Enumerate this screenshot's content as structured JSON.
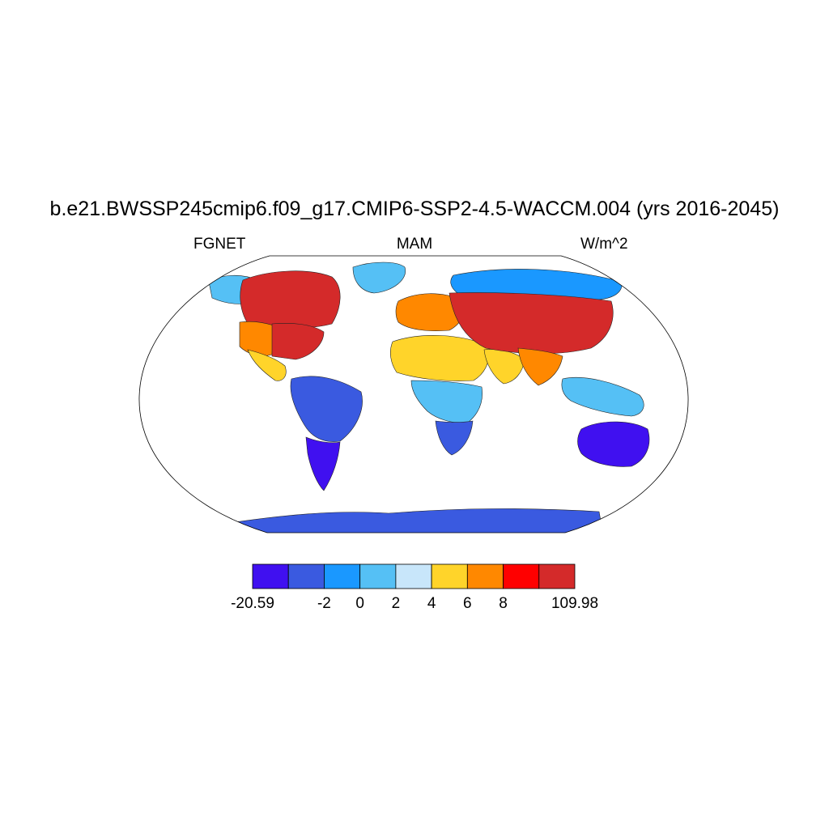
{
  "title": "b.e21.BWSSP245cmip6.f09_g17.CMIP6-SSP2-4.5-WACCM.004 (yrs 2016-2045)",
  "subtitle_left": "FGNET",
  "subtitle_center": "MAM",
  "subtitle_right": "W/m^2",
  "colorbar": {
    "colors": [
      "#4010f0",
      "#3a5ae0",
      "#1a98ff",
      "#55c0f5",
      "#c8e6fa",
      "#ffd42a",
      "#ff8800",
      "#ff0000",
      "#d42a2a"
    ],
    "labels": [
      "-20.59",
      "-2",
      "0",
      "2",
      "4",
      "6",
      "8",
      "109.98"
    ]
  },
  "regions": [
    {
      "name": "Alaska",
      "level": 3
    },
    {
      "name": "Canada",
      "level": 8
    },
    {
      "name": "Greenland",
      "level": 3
    },
    {
      "name": "Eastern United States",
      "level": 8
    },
    {
      "name": "Western United States",
      "level": 6
    },
    {
      "name": "Mexico",
      "level": 5
    },
    {
      "name": "Amazon",
      "level": 1
    },
    {
      "name": "Southern South America",
      "level": 0
    },
    {
      "name": "Sahara",
      "level": 5
    },
    {
      "name": "Central Africa",
      "level": 3
    },
    {
      "name": "Southern Africa",
      "level": 1
    },
    {
      "name": "Europe",
      "level": 6
    },
    {
      "name": "Arabia",
      "level": 5
    },
    {
      "name": "Siberia",
      "level": 2
    },
    {
      "name": "Central Asia",
      "level": 8
    },
    {
      "name": "India",
      "level": 6
    },
    {
      "name": "Southeast Asia",
      "level": 3
    },
    {
      "name": "Australia",
      "level": 0
    },
    {
      "name": "Antarctica",
      "level": 1
    }
  ]
}
